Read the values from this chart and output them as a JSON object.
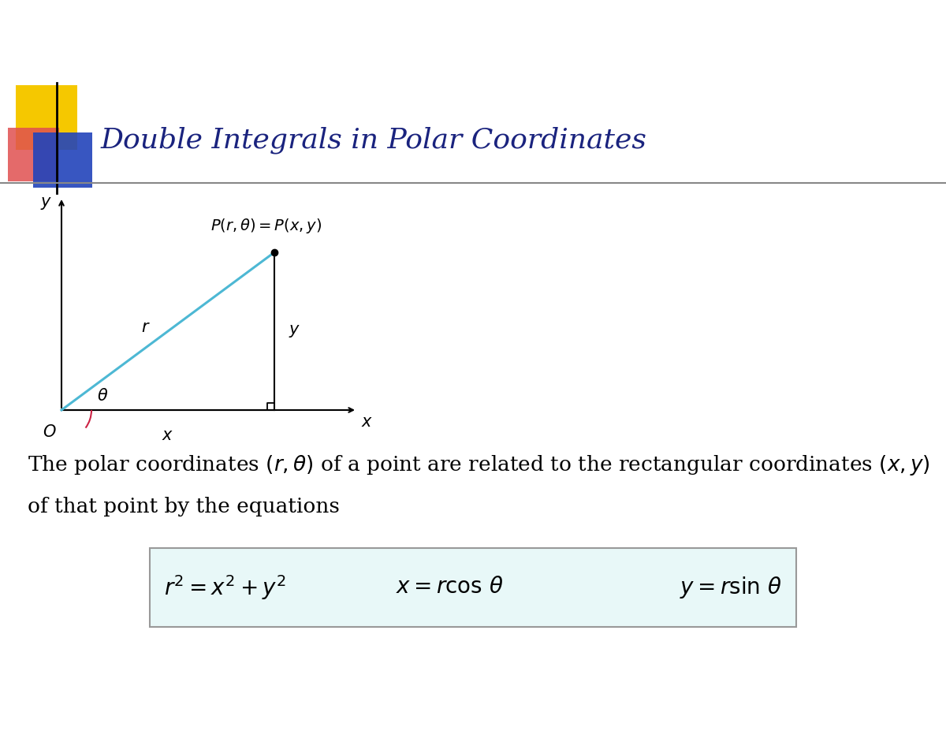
{
  "title": "Double Integrals in Polar Coordinates",
  "title_color": "#1a237e",
  "title_fontsize": 26,
  "bg_color": "#ffffff",
  "yellow_color": "#f5c800",
  "red_color": "#e05050",
  "blue_color": "#2244bb",
  "line_color": "#4db8d4",
  "theta_arc_color": "#cc2244",
  "text_fontsize": 19,
  "eq_fontsize": 20,
  "box_bg": "#e8f8f8",
  "box_edge": "#999999"
}
